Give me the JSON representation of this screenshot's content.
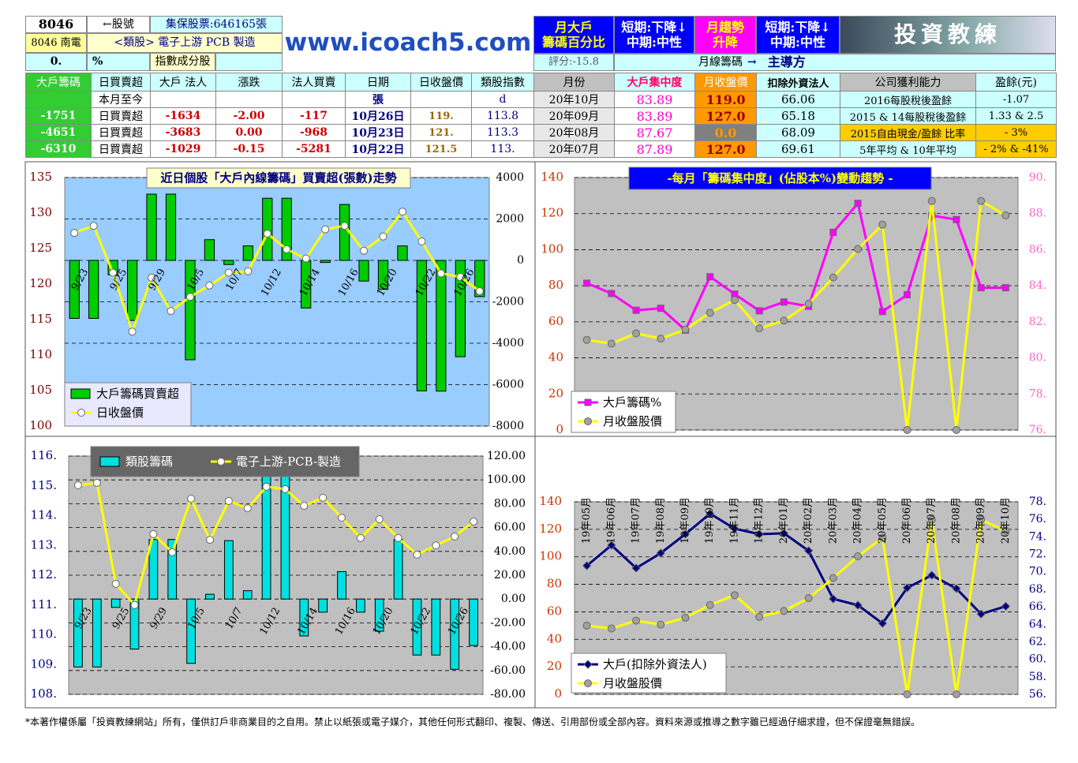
{
  "header": {
    "code": "8046",
    "code_label": "←股號",
    "shares": "集保股票:646165張",
    "url": "www.icoach5.com",
    "big_holder": [
      "月大戶",
      "籌碼百分比"
    ],
    "big_holder_trend": [
      "短期:下降↓",
      "中期:中性"
    ],
    "month_trend": [
      "月趨勢",
      "升降"
    ],
    "month_trend_status": [
      "短期:下降↓",
      "中期:中性"
    ],
    "logo": "投資教練",
    "name": "8046 南電",
    "sector": "<類股> 電子上游 PCB 製造",
    "pct": "0.",
    "pct_unit": "%",
    "index_member": "指數成分股",
    "score": "評分:-15.8",
    "monthly_chip": "月線籌碼",
    "arrow": "→",
    "leader": "主導方"
  },
  "table": {
    "columns": [
      "大戶籌碼",
      "日買賣超",
      "大戶 法人",
      "漲跌",
      "法人買賣",
      "日期",
      "日收盤價",
      "類股指數",
      "月份",
      "大戶集中度",
      "月收盤價",
      "扣除外資法人",
      "公司獲利能力",
      "盈餘(元)"
    ],
    "rows": [
      [
        null,
        "本月至今",
        null,
        null,
        null,
        "張",
        null,
        "d",
        "20年10月",
        "83.89",
        "119.0",
        "66.06",
        "2016每股稅後盈餘",
        "-1.07"
      ],
      [
        "-1751",
        "日買賣超",
        "-1634",
        "-2.00",
        "-117",
        "10月26日",
        "119.",
        "113.8",
        "20年09月",
        "83.89",
        "127.0",
        "65.18",
        "2015 & 14每股稅後盈餘",
        "1.33 & 2.5"
      ],
      [
        "-4651",
        "日買賣超",
        "-3683",
        "0.00",
        "-968",
        "10月23日",
        "121.",
        "113.3",
        "20年08月",
        "87.67",
        "0.0",
        "68.09",
        "2015自由現金/盈餘 比率",
        "- 3%"
      ],
      [
        "-6310",
        "日買賣超",
        "-1029",
        "-0.15",
        "-5281",
        "10月22日",
        "121.5",
        "113.",
        "20年07月",
        "87.89",
        "127.0",
        "69.61",
        "5年平均 & 10年平均",
        "- 2% & -41%"
      ]
    ]
  },
  "chart_data": [
    {
      "type": "combo",
      "title": "近日個股「大戶內線籌碼」買賣超(張數)走勢",
      "categories": [
        null,
        "9/23",
        null,
        "9/25",
        null,
        "9/29",
        null,
        "10/5",
        null,
        "10/7",
        null,
        "10/12",
        null,
        "10/14",
        null,
        "10/16",
        null,
        "10/20",
        null,
        "10/22",
        null,
        "10/26"
      ],
      "series": [
        {
          "name": "大戶籌碼買賣超",
          "kind": "bar",
          "axis": "y2",
          "color": "#00cc00",
          "values": [
            -2800,
            -2800,
            -700,
            -2900,
            3200,
            3200,
            -4800,
            1000,
            -200,
            700,
            3000,
            3000,
            -2300,
            -100,
            2700,
            -1000,
            -1400,
            700,
            -6300,
            -6310,
            -4651,
            -1751
          ]
        },
        {
          "name": "日收盤價",
          "kind": "line",
          "color": "#ffff00",
          "marker": "circle",
          "marker_color": "#ffffff",
          "values": [
            127.2,
            128.2,
            121.6,
            113.3,
            120.9,
            116.2,
            118.2,
            119.8,
            121.6,
            121.8,
            127.1,
            124.9,
            123.6,
            127.7,
            128.2,
            124.7,
            126.7,
            130.2,
            126,
            121.5,
            121,
            119
          ]
        }
      ],
      "ylim": [
        100,
        135
      ],
      "yticks": [
        100,
        105,
        110,
        115,
        120,
        125,
        130,
        135
      ],
      "y2lim": [
        -8000,
        4000
      ],
      "y2ticks": [
        -8000,
        -6000,
        -4000,
        -2000,
        0,
        2000,
        4000
      ],
      "grid": "y2",
      "legend": "lower left"
    },
    {
      "type": "line",
      "title": "-每月「籌碼集中度」(佔股本%)變動趨勢 -",
      "series": [
        {
          "name": "大戶籌碼%",
          "axis": "y2",
          "color": "#ff00ff",
          "marker": "square",
          "marker_color": "#ff00ff",
          "values": [
            84.14,
            83.57,
            82.64,
            82.75,
            81.54,
            84.5,
            83.54,
            82.61,
            83.1,
            82.86,
            86.96,
            88.57,
            82.57,
            83.5,
            87.89,
            87.67,
            83.89,
            83.89
          ]
        },
        {
          "name": "月收盤股價",
          "color": "#ffff00",
          "marker": "circle",
          "marker_color": "#a0a0a0",
          "values": [
            50,
            47.9,
            53.6,
            50.7,
            55.7,
            65,
            72.1,
            56.4,
            60.7,
            70,
            84.6,
            100.4,
            113.9,
            0,
            127,
            0,
            127,
            119
          ]
        }
      ],
      "ylim": [
        0,
        140
      ],
      "yticks": [
        0,
        20,
        40,
        60,
        80,
        100,
        120,
        140
      ],
      "y2lim": [
        76,
        90
      ],
      "y2ticks": [
        {
          "value": 76,
          "label": "76."
        },
        {
          "value": 78,
          "label": "78."
        },
        {
          "value": 80,
          "label": "80."
        },
        {
          "value": 82,
          "label": "82."
        },
        {
          "value": 84,
          "label": "84."
        },
        {
          "value": 86,
          "label": "86."
        },
        {
          "value": 88,
          "label": "88."
        },
        {
          "value": 90,
          "label": "90."
        }
      ],
      "grid": "y",
      "legend": "lower left"
    },
    {
      "type": "combo",
      "categories": [
        null,
        "9/23",
        null,
        "9/25",
        null,
        "9/29",
        null,
        "10/5",
        null,
        "10/7",
        null,
        "10/12",
        null,
        "10/14",
        null,
        "10/16",
        null,
        "10/20",
        null,
        "10/22",
        null,
        "10/26"
      ],
      "series": [
        {
          "name": "類股籌碼",
          "kind": "bar",
          "axis": "y2",
          "color": "#00e0e0",
          "values": [
            -57,
            -57,
            -7,
            -42,
            50,
            50,
            -54,
            4,
            49,
            7,
            107,
            107,
            -31,
            -11,
            23,
            -11,
            -27,
            50,
            -47,
            -47,
            -59,
            -39
          ]
        },
        {
          "name": "電子上游-PCB-製造",
          "kind": "line",
          "color": "#ffff00",
          "marker": "circle",
          "marker_color": "#ffffff",
          "values": [
            115.02,
            115.1,
            111.71,
            111,
            113.38,
            112.77,
            114.57,
            113.19,
            114.49,
            114.25,
            114.97,
            114.89,
            114.33,
            114.6,
            113.93,
            113.25,
            113.88,
            113.25,
            112.69,
            113,
            113.3,
            113.8
          ]
        }
      ],
      "ylim": [
        108,
        116
      ],
      "yticks": [
        {
          "value": 108,
          "label": "108."
        },
        {
          "value": 109,
          "label": "109."
        },
        {
          "value": 110,
          "label": "110."
        },
        {
          "value": 111,
          "label": "111."
        },
        {
          "value": 112,
          "label": "112."
        },
        {
          "value": 113,
          "label": "113."
        },
        {
          "value": 114,
          "label": "114."
        },
        {
          "value": 115,
          "label": "115."
        },
        {
          "value": 116,
          "label": "116."
        }
      ],
      "y2lim": [
        -80,
        120
      ],
      "y2ticks": [
        {
          "value": -80,
          "label": "-80.00"
        },
        {
          "value": -60,
          "label": "-60.00"
        },
        {
          "value": -40,
          "label": "-40.00"
        },
        {
          "value": -20,
          "label": "-20.00"
        },
        {
          "value": 0,
          "label": "0.00"
        },
        {
          "value": 20,
          "label": "20.00"
        },
        {
          "value": 40,
          "label": "40.00"
        },
        {
          "value": 60,
          "label": "60.00"
        },
        {
          "value": 80,
          "label": "80.00"
        },
        {
          "value": 100,
          "label": "100.00"
        },
        {
          "value": 120,
          "label": "120.00"
        }
      ],
      "grid": "y2",
      "legend": "upper left"
    },
    {
      "type": "line",
      "categories": [
        "19年05月",
        "19年06月",
        "19年07月",
        "19年08月",
        "19年09月",
        "19年10月",
        "19年11月",
        "19年12月",
        "20年01月",
        "20年02月",
        "20年03月",
        "20年04月",
        "20年05月",
        "20年06月",
        "20年07月",
        "20年08月",
        "20年09月",
        "20年10月"
      ],
      "series": [
        {
          "name": "大戶(扣除外資法人)",
          "axis": "y2",
          "color": "#000080",
          "marker": "diamond",
          "marker_color": "#000080",
          "values": [
            70.7,
            73.04,
            70.43,
            72.14,
            74.3,
            76.65,
            74.93,
            74.3,
            74.4,
            72.41,
            66.91,
            66.19,
            64.11,
            68.17,
            69.61,
            68.09,
            65.18,
            66.06
          ]
        },
        {
          "name": "月收盤股價",
          "color": "#ffff00",
          "marker": "circle",
          "marker_color": "#a0a0a0",
          "values": [
            50,
            47.9,
            53.6,
            50.7,
            55.7,
            65,
            72.1,
            56.4,
            60.7,
            70,
            84.6,
            100.4,
            113.9,
            0,
            127,
            0,
            127,
            119
          ]
        }
      ],
      "ylim": [
        0,
        140
      ],
      "yticks": [
        0,
        20,
        40,
        60,
        80,
        100,
        120,
        140
      ],
      "y2lim": [
        56,
        78
      ],
      "y2ticks": [
        {
          "value": 56,
          "label": "56."
        },
        {
          "value": 58,
          "label": "58."
        },
        {
          "value": 60,
          "label": "60."
        },
        {
          "value": 62,
          "label": "62."
        },
        {
          "value": 64,
          "label": "64."
        },
        {
          "value": 66,
          "label": "66."
        },
        {
          "value": 68,
          "label": "68."
        },
        {
          "value": 70,
          "label": "70."
        },
        {
          "value": 72,
          "label": "72."
        },
        {
          "value": 74,
          "label": "74."
        },
        {
          "value": 76,
          "label": "76."
        },
        {
          "value": 78,
          "label": "78."
        }
      ],
      "grid": "y",
      "legend": "lower left"
    }
  ],
  "footer": "*本著作權係屬「投資教練網站」所有，僅供訂戶非商業目的之自用。禁止以紙張或電子媒介，其他任何形式翻印、複製、傳送、引用部份或全部內容。資料來源或推導之數字雖已經過仔細求證，但不保證毫無錯誤。"
}
